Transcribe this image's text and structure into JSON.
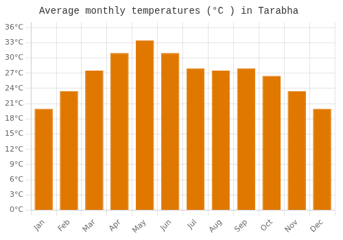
{
  "chart_data": {
    "type": "bar",
    "title": "Average monthly temperatures (°C ) in Tarabha",
    "categories": [
      "Jan",
      "Feb",
      "Mar",
      "Apr",
      "May",
      "Jun",
      "Jul",
      "Aug",
      "Sep",
      "Oct",
      "Nov",
      "Dec"
    ],
    "values": [
      20,
      23.5,
      27.5,
      31,
      33.5,
      31,
      28,
      27.5,
      28,
      26.5,
      23.5,
      20
    ],
    "color": "#E07800",
    "ylim": [
      0,
      37
    ],
    "yticks": [
      {
        "value": 0,
        "label": "0°C"
      },
      {
        "value": 3,
        "label": "3°C"
      },
      {
        "value": 6,
        "label": "6°C"
      },
      {
        "value": 9,
        "label": "9°C"
      },
      {
        "value": 12,
        "label": "12°C"
      },
      {
        "value": 15,
        "label": "15°C"
      },
      {
        "value": 18,
        "label": "18°C"
      },
      {
        "value": 21,
        "label": "21°C"
      },
      {
        "value": 24,
        "label": "24°C"
      },
      {
        "value": 27,
        "label": "27°C"
      },
      {
        "value": 30,
        "label": "30°C"
      },
      {
        "value": 33,
        "label": "33°C"
      },
      {
        "value": 36,
        "label": "36°C"
      }
    ],
    "grid": true
  }
}
